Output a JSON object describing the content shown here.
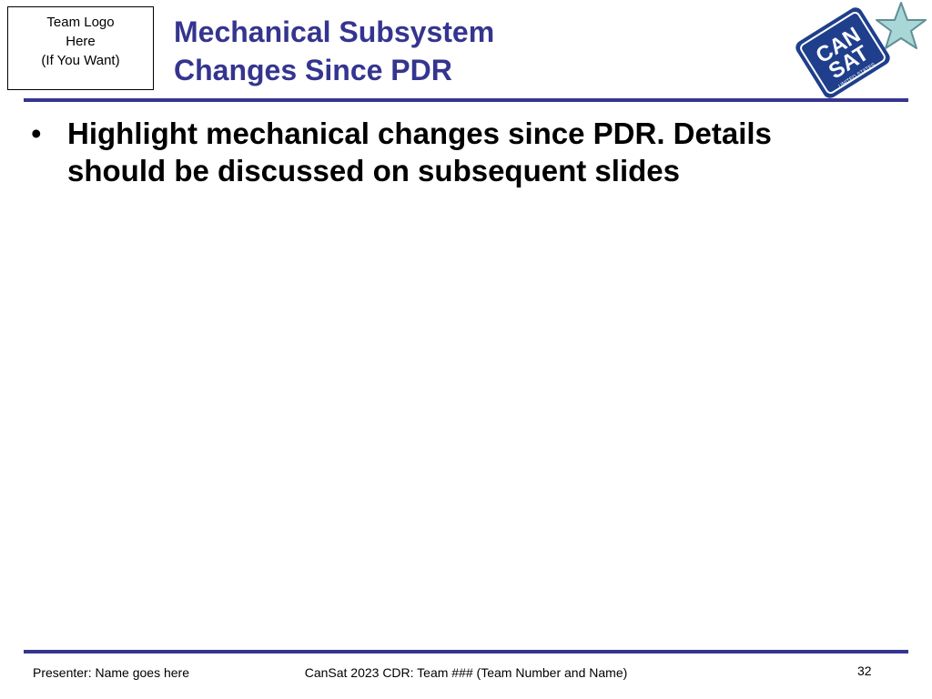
{
  "logo_placeholder": {
    "line1": "Team Logo",
    "line2": "Here",
    "line3": "(If You Want)"
  },
  "title": {
    "line1": "Mechanical Subsystem",
    "line2": "Changes Since PDR"
  },
  "brand_logo": {
    "text_main": "CANSAT",
    "text_sub": "UNITED STATES",
    "icon": "star-icon"
  },
  "content": {
    "bullets": [
      {
        "line1": "Highlight mechanical changes since PDR.  Details",
        "line2": "should be discussed on subsequent slides"
      }
    ]
  },
  "footer": {
    "presenter": "Presenter:  Name goes here",
    "center": "CanSat 2023 CDR:  Team ### (Team Number and Name)",
    "page_number": "32"
  },
  "colors": {
    "accent": "#35358f",
    "logo_blue": "#1f3f8c",
    "star_fill": "#a9d6d6"
  }
}
